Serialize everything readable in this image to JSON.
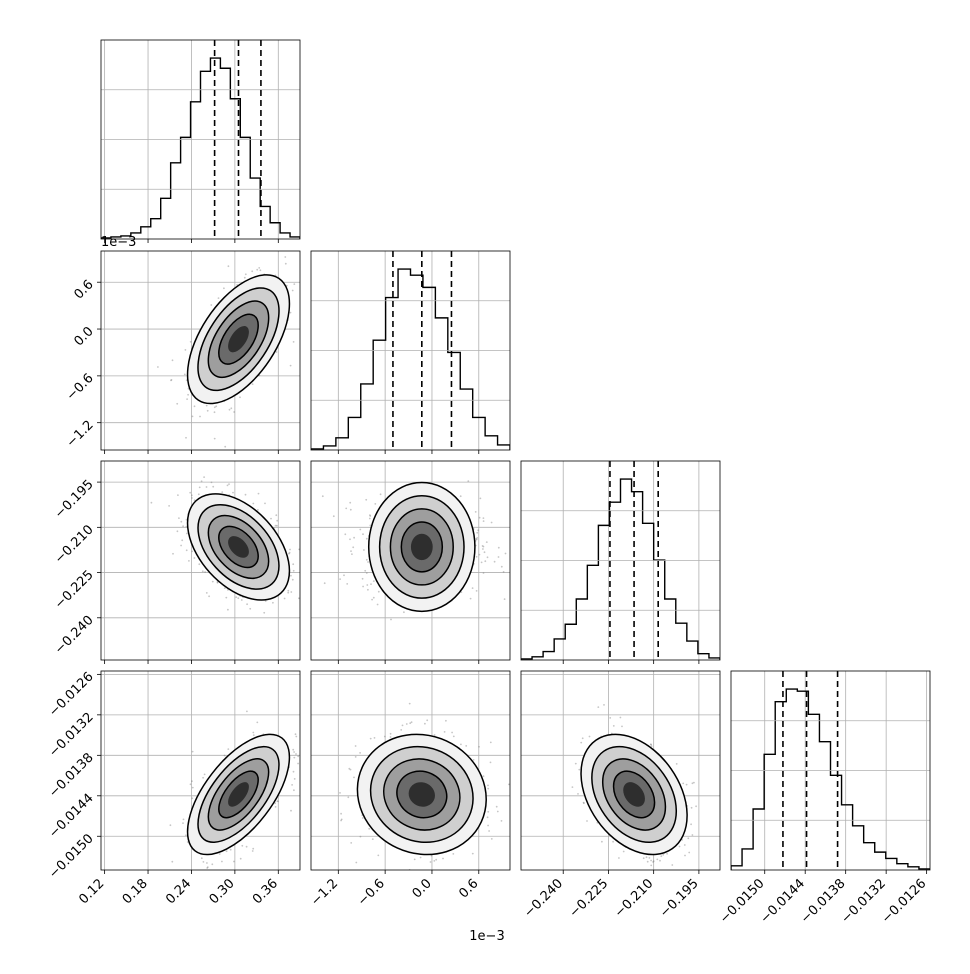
{
  "chart_data": {
    "type": "corner",
    "parameters": [
      {
        "ticks": [
          "0.12",
          "0.18",
          "0.24",
          "0.30",
          "0.36"
        ],
        "tick_values": [
          0.12,
          0.18,
          0.24,
          0.3,
          0.36
        ],
        "range": [
          0.115,
          0.39
        ],
        "quantiles": [
          0.272,
          0.305,
          0.336
        ],
        "offset_label": ""
      },
      {
        "ticks": [
          "−1.2",
          "−0.6",
          "0.0",
          "0.6"
        ],
        "tick_values": [
          -1.2,
          -0.6,
          0.0,
          0.6
        ],
        "range": [
          -1.55,
          1.0
        ],
        "quantiles": [
          -0.5,
          -0.13,
          0.25
        ],
        "offset_label": "1e−3"
      },
      {
        "ticks": [
          "−0.240",
          "−0.225",
          "−0.210",
          "−0.195"
        ],
        "tick_values": [
          -0.24,
          -0.225,
          -0.21,
          -0.195
        ],
        "range": [
          -0.254,
          -0.188
        ],
        "quantiles": [
          -0.2245,
          -0.2165,
          -0.2085
        ],
        "offset_label": ""
      },
      {
        "ticks": [
          "−0.0150",
          "−0.0144",
          "−0.0138",
          "−0.0132",
          "−0.0126"
        ],
        "tick_values": [
          -0.015,
          -0.0144,
          -0.0138,
          -0.0132,
          -0.0126
        ],
        "range": [
          -0.0155,
          -0.01255
        ],
        "quantiles": [
          -0.01473,
          -0.01438,
          -0.01392
        ],
        "offset_label": ""
      }
    ],
    "histograms": [
      {
        "counts": [
          1,
          2,
          3,
          6,
          12,
          20,
          40,
          75,
          100,
          135,
          165,
          178,
          168,
          138,
          100,
          60,
          32,
          16,
          6,
          2
        ]
      },
      {
        "counts": [
          1,
          4,
          12,
          32,
          65,
          108,
          150,
          178,
          172,
          160,
          130,
          96,
          60,
          32,
          14,
          5
        ]
      },
      {
        "counts": [
          1,
          3,
          8,
          20,
          34,
          58,
          90,
          128,
          150,
          172,
          160,
          130,
          95,
          58,
          35,
          18,
          6,
          2
        ]
      },
      {
        "counts": [
          4,
          20,
          58,
          110,
          160,
          172,
          170,
          148,
          122,
          90,
          62,
          42,
          26,
          17,
          11,
          6,
          3,
          1
        ]
      }
    ],
    "correlations": {
      "1-0": 0.55,
      "2-0": -0.45,
      "2-1": 0.0,
      "3-0": 0.62,
      "3-1": -0.08,
      "3-2": -0.35
    },
    "grid": true,
    "contours": "density levels with 2D histogram shading"
  }
}
